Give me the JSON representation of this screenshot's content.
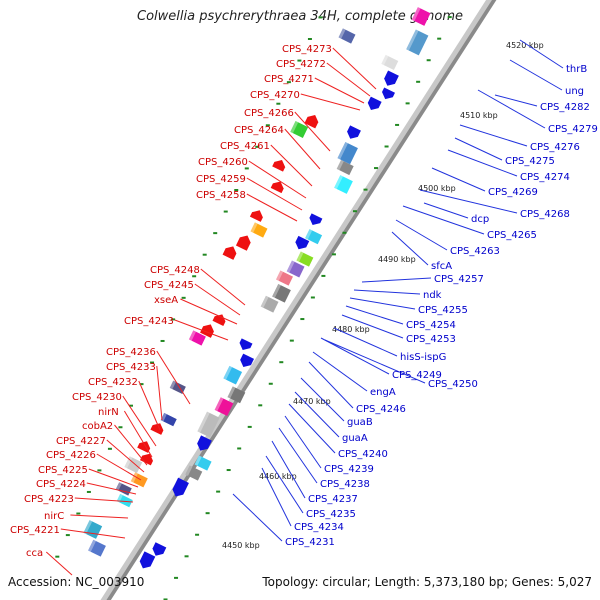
{
  "title": "Colwellia psychrerythraea 34H, complete genome",
  "footer": {
    "accession": "Accession: NC_003910",
    "summary": "Topology: circular; Length: 5,373,180 bp; Genes: 5,027"
  },
  "colors": {
    "left_label": "#cc0000",
    "right_label": "#0000cc",
    "forward_gene": "#ee1111",
    "reverse_gene": "#1111dd",
    "leader_left": "#ee2222",
    "leader_right": "#2233dd",
    "backbone": "#b0b0b0",
    "gc_tick": "#228822"
  },
  "scale_ticks": [
    "4450 kbp",
    "4460 kbp",
    "4470 kbp",
    "4480 kbp",
    "4490 kbp",
    "4500 kbp",
    "4510 kbp",
    "4520 kbp"
  ],
  "left_labels": [
    "cca",
    "CPS_4221",
    "nirC",
    "CPS_4223",
    "CPS_4224",
    "CPS_4225",
    "CPS_4226",
    "CPS_4227",
    "cobA2",
    "nirN",
    "CPS_4230",
    "CPS_4232",
    "CPS_4233",
    "CPS_4236",
    "CPS_4243",
    "xseA",
    "CPS_4245",
    "CPS_4248",
    "CPS_4258",
    "CPS_4259",
    "CPS_4260",
    "CPS_4261",
    "CPS_4264",
    "CPS_4266",
    "CPS_4270",
    "CPS_4271",
    "CPS_4272",
    "CPS_4273"
  ],
  "right_labels": [
    "thrB",
    "ung",
    "CPS_4282",
    "CPS_4279",
    "CPS_4276",
    "CPS_4275",
    "CPS_4274",
    "CPS_4269",
    "CPS_4268",
    "dcp",
    "CPS_4265",
    "CPS_4263",
    "sfcA",
    "CPS_4257",
    "ndk",
    "CPS_4255",
    "CPS_4254",
    "CPS_4253",
    "hisS-ispG",
    "CPS_4250",
    "CPS_4249",
    "engA",
    "CPS_4246",
    "guaB",
    "guaA",
    "CPS_4240",
    "CPS_4239",
    "CPS_4238",
    "CPS_4237",
    "CPS_4235",
    "CPS_4234",
    "CPS_4231"
  ]
}
